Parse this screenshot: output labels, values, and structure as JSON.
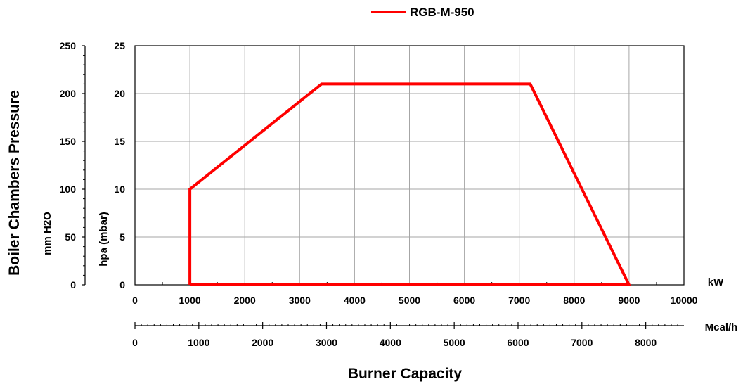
{
  "chart_data": {
    "type": "line",
    "legend": {
      "label": "RGB-M-950",
      "color": "#ff0000",
      "position": "top-center"
    },
    "title": "",
    "ylabel_main": "Boiler Chambers Pressure",
    "ylabel_outer": "mm H2O",
    "ylabel_inner": "hpa (mbar)",
    "xlabel_main": "Burner Capacity",
    "x_unit_primary": "kW",
    "x_unit_secondary": "Mcal/h",
    "xlim": [
      0,
      10000
    ],
    "ylim": [
      0,
      25
    ],
    "x_ticks": [
      "0",
      "1000",
      "2000",
      "3000",
      "4000",
      "5000",
      "6000",
      "7000",
      "8000",
      "9000",
      "10000"
    ],
    "x_tick_values": [
      0,
      1000,
      2000,
      3000,
      4000,
      5000,
      6000,
      7000,
      8000,
      9000,
      10000
    ],
    "x2_ticks": [
      "0",
      "1000",
      "2000",
      "3000",
      "4000",
      "5000",
      "6000",
      "7000",
      "8000"
    ],
    "x2_tick_values": [
      0,
      1000,
      2000,
      3000,
      4000,
      5000,
      6000,
      7000,
      8000
    ],
    "x2_conversion_kw_per_mcalh": 1.163,
    "y_ticks_hpa": [
      "0",
      "5",
      "10",
      "15",
      "20",
      "25"
    ],
    "y_tick_values_hpa": [
      0,
      5,
      10,
      15,
      20,
      25
    ],
    "y_ticks_mmh2o": [
      "0",
      "50",
      "100",
      "150",
      "200",
      "250"
    ],
    "grid": true,
    "series": [
      {
        "name": "RGB-M-950",
        "color": "#ff0000",
        "x": [
          1000,
          1000,
          3400,
          7200,
          9000,
          1000
        ],
        "y": [
          0,
          10,
          21,
          21,
          0,
          0
        ]
      }
    ]
  }
}
